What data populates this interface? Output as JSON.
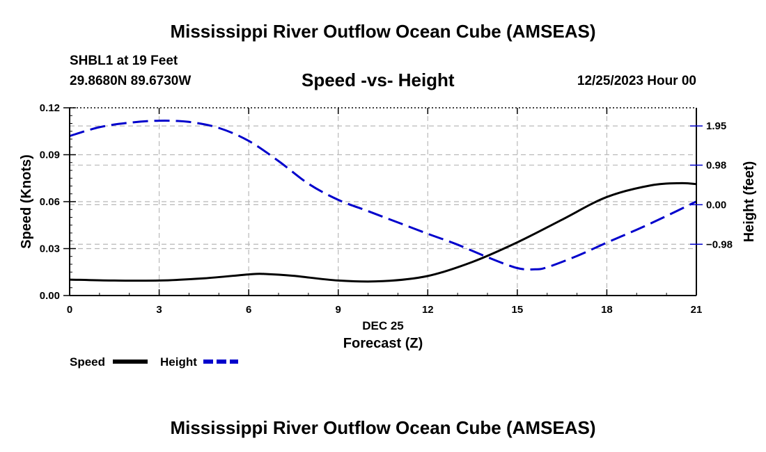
{
  "header": {
    "title": "Mississippi River Outflow Ocean Cube (AMSEAS)",
    "station": "SHBL1 at 19 Feet",
    "location": "29.8680N  89.6730W",
    "subtitle": "Speed -vs- Height",
    "datetime": "12/25/2023 Hour 00"
  },
  "footer": {
    "title": "Mississippi River Outflow Ocean Cube (AMSEAS)"
  },
  "chart_data": {
    "type": "line",
    "title": "Speed -vs- Height",
    "xlabel": "Forecast (Z)",
    "xsublabel": "DEC 25",
    "ylabel": "Speed (Knots)",
    "y2label": "Height (feet)",
    "xlim": [
      0,
      21
    ],
    "ylim": [
      0,
      0.12
    ],
    "y2lim": [
      -2.25,
      2.4
    ],
    "xticks": [
      0,
      3,
      6,
      9,
      12,
      15,
      18,
      21
    ],
    "yticks": [
      0.0,
      0.03,
      0.06,
      0.09,
      0.12
    ],
    "ytick_labels": [
      "0.00",
      "0.03",
      "0.06",
      "0.09",
      "0.12"
    ],
    "y2ticks": [
      -0.98,
      0.0,
      0.98,
      1.95
    ],
    "y2tick_labels": [
      "−0.98",
      "0.00",
      "0.98",
      "1.95"
    ],
    "grid": true,
    "series": [
      {
        "name": "Speed",
        "axis": "left",
        "color": "#000000",
        "dash": "solid",
        "x": [
          0,
          1.5,
          3,
          4.5,
          6,
          6.5,
          7.5,
          9,
          10.5,
          12,
          13.5,
          15,
          16.5,
          18,
          19.5,
          20.5,
          21
        ],
        "values": [
          0.0102,
          0.0096,
          0.0096,
          0.011,
          0.0135,
          0.0138,
          0.0126,
          0.0096,
          0.0092,
          0.0125,
          0.0215,
          0.034,
          0.0485,
          0.063,
          0.0705,
          0.0718,
          0.0712
        ]
      },
      {
        "name": "Height",
        "axis": "right",
        "color": "#0000cc",
        "dash": "dashed",
        "x": [
          0,
          1,
          2,
          3,
          4,
          5,
          6,
          7,
          8,
          9,
          10,
          11,
          12,
          13,
          14,
          15,
          15.6,
          16,
          17,
          18,
          19,
          20,
          21
        ],
        "values": [
          1.7,
          1.92,
          2.03,
          2.08,
          2.05,
          1.9,
          1.58,
          1.08,
          0.52,
          0.12,
          -0.16,
          -0.44,
          -0.72,
          -0.99,
          -1.3,
          -1.57,
          -1.6,
          -1.55,
          -1.27,
          -0.94,
          -0.62,
          -0.28,
          0.08
        ]
      }
    ],
    "legend": [
      {
        "label": "Speed",
        "color": "#000000",
        "dash": "solid"
      },
      {
        "label": "Height",
        "color": "#0000cc",
        "dash": "dashed"
      }
    ]
  }
}
